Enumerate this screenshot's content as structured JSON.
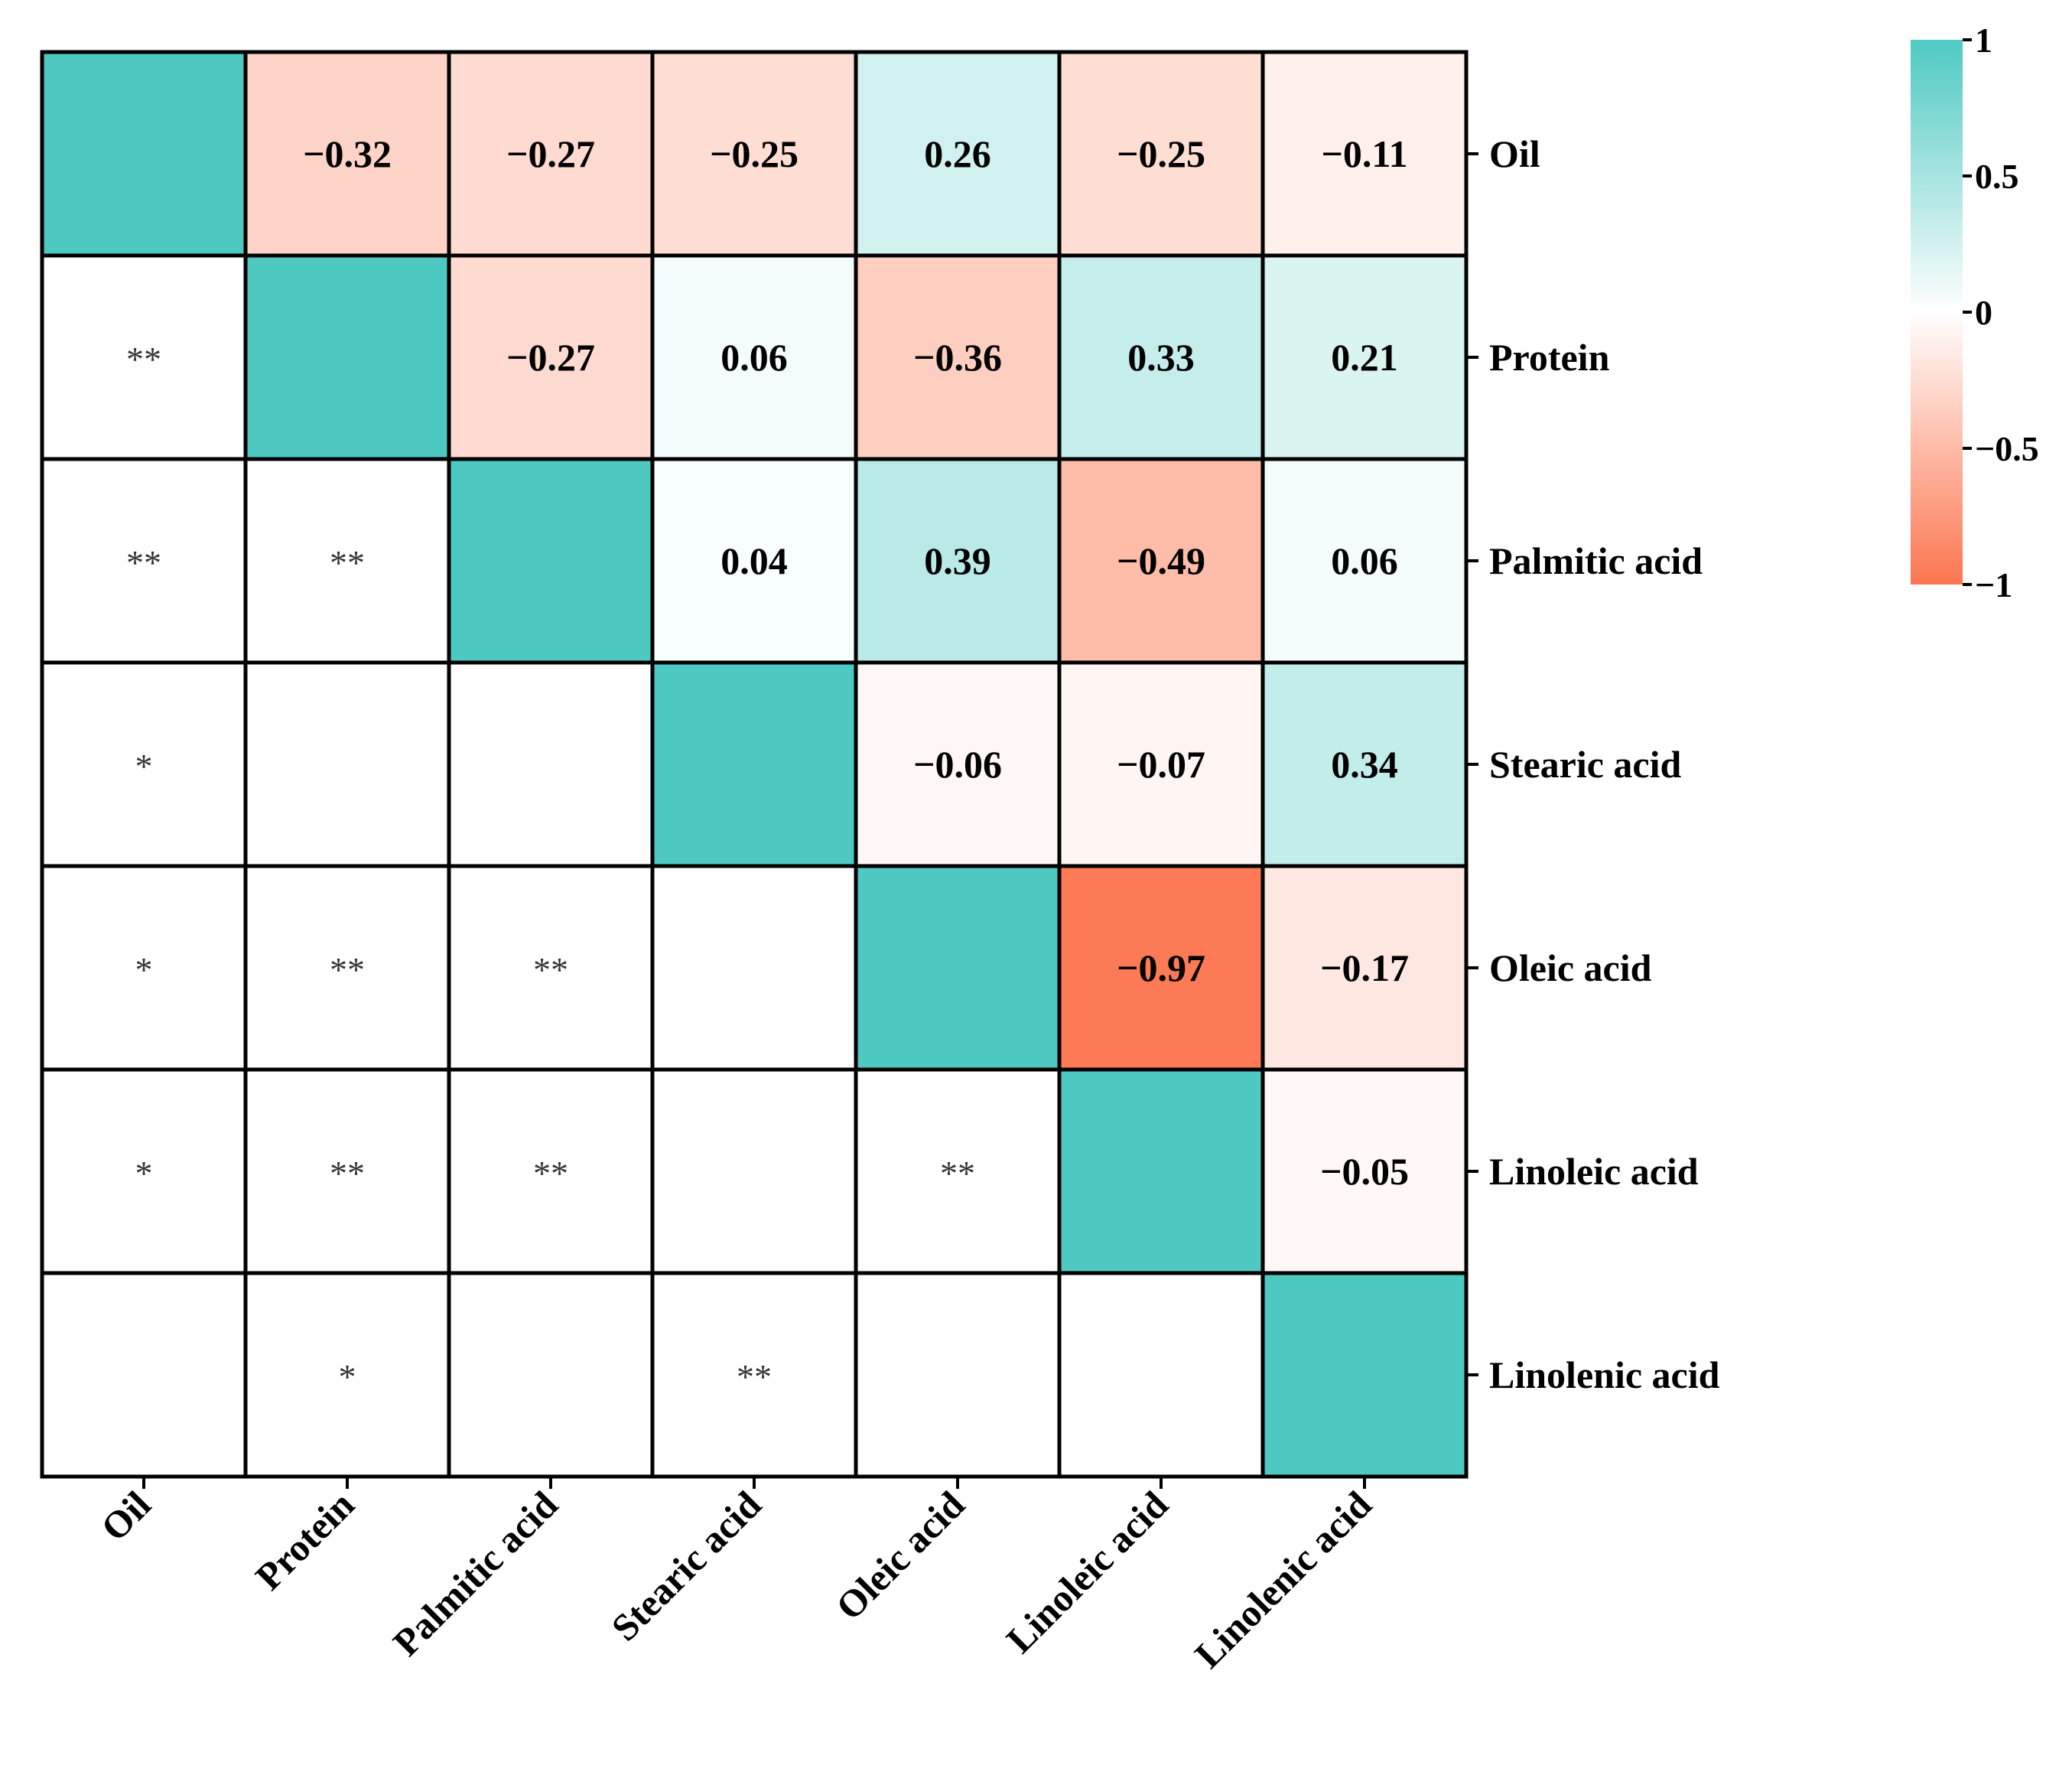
{
  "chart_data": {
    "type": "heatmap",
    "title": "",
    "variables": [
      "Oil",
      "Protein",
      "Palmitic acid",
      "Stearic acid",
      "Oleic acid",
      "Linoleic acid",
      "Linolenic acid"
    ],
    "upper_triangle_values": [
      [
        null,
        "−0.32",
        "−0.27",
        "−0.25",
        "0.26",
        "−0.25",
        "−0.11"
      ],
      [
        null,
        null,
        "−0.27",
        "0.06",
        "−0.36",
        "0.33",
        "0.21"
      ],
      [
        null,
        null,
        null,
        "0.04",
        "0.39",
        "−0.49",
        "0.06"
      ],
      [
        null,
        null,
        null,
        null,
        "−0.06",
        "−0.07",
        "0.34"
      ],
      [
        null,
        null,
        null,
        null,
        null,
        "−0.97",
        "−0.17"
      ],
      [
        null,
        null,
        null,
        null,
        null,
        null,
        "−0.05"
      ],
      [
        null,
        null,
        null,
        null,
        null,
        null,
        null
      ]
    ],
    "correlation_matrix": [
      [
        1,
        -0.32,
        -0.27,
        -0.25,
        0.26,
        -0.25,
        -0.11
      ],
      [
        -0.32,
        1,
        -0.27,
        0.06,
        -0.36,
        0.33,
        0.21
      ],
      [
        -0.27,
        -0.27,
        1,
        0.04,
        0.39,
        -0.49,
        0.06
      ],
      [
        -0.25,
        0.06,
        0.04,
        1,
        -0.06,
        -0.07,
        0.34
      ],
      [
        0.26,
        -0.36,
        0.39,
        -0.06,
        1,
        -0.97,
        -0.17
      ],
      [
        -0.25,
        0.33,
        -0.49,
        -0.07,
        -0.97,
        1,
        -0.05
      ],
      [
        -0.11,
        0.21,
        0.06,
        0.34,
        -0.17,
        -0.05,
        1
      ]
    ],
    "lower_triangle_significance": [
      [
        "",
        "",
        "",
        "",
        "",
        "",
        ""
      ],
      [
        "**",
        "",
        "",
        "",
        "",
        "",
        ""
      ],
      [
        "**",
        "**",
        "",
        "",
        "",
        "",
        ""
      ],
      [
        "*",
        "",
        "",
        "",
        "",
        "",
        ""
      ],
      [
        "*",
        "**",
        "**",
        "",
        "",
        "",
        ""
      ],
      [
        "*",
        "**",
        "**",
        "",
        "**",
        "",
        ""
      ],
      [
        "",
        "*",
        "",
        "**",
        "",
        "",
        ""
      ]
    ],
    "colorbar": {
      "vmin": -1,
      "vmax": 1,
      "ticks": [
        1,
        0.5,
        0,
        -0.5,
        -1
      ],
      "tick_labels": [
        "1",
        "0.5",
        "0",
        "−0.5",
        "−1"
      ],
      "color_high": "#4ec9c2",
      "color_mid": "#ffffff",
      "color_low": "#fc7650"
    },
    "diagonal_color": "#4ec9c2",
    "grid": true,
    "legend": "colorbar top-right"
  }
}
